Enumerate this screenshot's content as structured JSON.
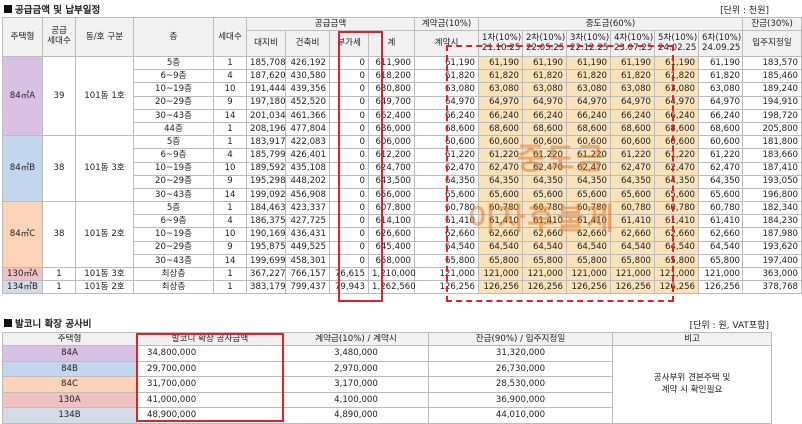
{
  "section1": {
    "title": "공급금액 및 납부일정",
    "unit": "[단위 : 천원]"
  },
  "section2": {
    "title": "발코니 확장 공사비",
    "unit": "[단위 : 원, VAT포함]"
  },
  "watermark": {
    "line1": "중도금",
    "line2": "이자후불제"
  },
  "headers": {
    "type": "주택형",
    "households": "공급\n세대수",
    "dong": "동/호 구분",
    "floor": "층",
    "units": "세대수",
    "supply": "공급금액",
    "land": "대지비",
    "build": "건축비",
    "vat": "부가세",
    "total": "계",
    "contract": "계약금(10%)",
    "contract_sub": "계약시",
    "mid": "중도금(60%)",
    "balance": "잔금(30%)",
    "balance_sub": "입주지정일",
    "installments": [
      {
        "label": "1차(10%)",
        "date": "21.10.25"
      },
      {
        "label": "2차(10%)",
        "date": "22.05.25"
      },
      {
        "label": "3차(10%)",
        "date": "22.12.25"
      },
      {
        "label": "4차(10%)",
        "date": "23.07.25"
      },
      {
        "label": "5차(10%)",
        "date": "24.02.25"
      },
      {
        "label": "6차(10%)",
        "date": "24.09.25"
      }
    ]
  },
  "groups": [
    {
      "type": "84㎡A",
      "households": "39",
      "dong": "101동 1호",
      "cls": "t84A",
      "rows": [
        {
          "floor": "5층",
          "units": "1",
          "land": "185,708",
          "build": "426,192",
          "vat": "0",
          "total": "611,900",
          "contract": "61,190",
          "mid": "61,190",
          "bal": "183,570"
        },
        {
          "floor": "6~9층",
          "units": "4",
          "land": "187,620",
          "build": "430,580",
          "vat": "0",
          "total": "618,200",
          "contract": "61,820",
          "mid": "61,820",
          "bal": "185,460"
        },
        {
          "floor": "10~19층",
          "units": "10",
          "land": "191,444",
          "build": "439,356",
          "vat": "0",
          "total": "630,800",
          "contract": "63,080",
          "mid": "63,080",
          "bal": "189,240"
        },
        {
          "floor": "20~29층",
          "units": "9",
          "land": "197,180",
          "build": "452,520",
          "vat": "0",
          "total": "649,700",
          "contract": "64,970",
          "mid": "64,970",
          "bal": "194,910"
        },
        {
          "floor": "30~43층",
          "units": "14",
          "land": "201,034",
          "build": "461,366",
          "vat": "0",
          "total": "662,400",
          "contract": "66,240",
          "mid": "66,240",
          "bal": "198,720"
        },
        {
          "floor": "44층",
          "units": "1",
          "land": "208,196",
          "build": "477,804",
          "vat": "0",
          "total": "686,000",
          "contract": "68,600",
          "mid": "68,600",
          "bal": "205,800"
        }
      ]
    },
    {
      "type": "84㎡B",
      "households": "38",
      "dong": "101동 3호",
      "cls": "t84B",
      "rows": [
        {
          "floor": "5층",
          "units": "1",
          "land": "183,917",
          "build": "422,083",
          "vat": "0",
          "total": "606,000",
          "contract": "60,600",
          "mid": "60,600",
          "bal": "181,800"
        },
        {
          "floor": "6~9층",
          "units": "4",
          "land": "185,799",
          "build": "426,401",
          "vat": "0",
          "total": "612,200",
          "contract": "61,220",
          "mid": "61,220",
          "bal": "183,660"
        },
        {
          "floor": "10~19층",
          "units": "10",
          "land": "189,592",
          "build": "435,108",
          "vat": "0",
          "total": "624,700",
          "contract": "62,470",
          "mid": "62,470",
          "bal": "187,410"
        },
        {
          "floor": "20~29층",
          "units": "9",
          "land": "195,298",
          "build": "448,202",
          "vat": "0",
          "total": "643,500",
          "contract": "64,350",
          "mid": "64,350",
          "bal": "193,050"
        },
        {
          "floor": "30~43층",
          "units": "14",
          "land": "199,092",
          "build": "456,908",
          "vat": "0",
          "total": "656,000",
          "contract": "65,600",
          "mid": "65,600",
          "bal": "196,800"
        }
      ]
    },
    {
      "type": "84㎡C",
      "households": "38",
      "dong": "101동 2호",
      "cls": "t84C",
      "rows": [
        {
          "floor": "5층",
          "units": "1",
          "land": "184,463",
          "build": "423,337",
          "vat": "0",
          "total": "607,800",
          "contract": "60,780",
          "mid": "60,780",
          "bal": "182,340"
        },
        {
          "floor": "6~9층",
          "units": "4",
          "land": "186,375",
          "build": "427,725",
          "vat": "0",
          "total": "614,100",
          "contract": "61,410",
          "mid": "61,410",
          "bal": "184,230"
        },
        {
          "floor": "10~19층",
          "units": "10",
          "land": "190,169",
          "build": "436,431",
          "vat": "0",
          "total": "626,600",
          "contract": "62,660",
          "mid": "62,660",
          "bal": "187,980"
        },
        {
          "floor": "20~29층",
          "units": "9",
          "land": "195,875",
          "build": "449,525",
          "vat": "0",
          "total": "645,400",
          "contract": "64,540",
          "mid": "64,540",
          "bal": "193,620"
        },
        {
          "floor": "30~43층",
          "units": "14",
          "land": "199,699",
          "build": "458,301",
          "vat": "0",
          "total": "658,000",
          "contract": "65,800",
          "mid": "65,800",
          "bal": "197,400"
        }
      ]
    },
    {
      "type": "130㎡A",
      "households": "1",
      "dong": "101동 3호",
      "cls": "t130",
      "rows": [
        {
          "floor": "최상층",
          "units": "1",
          "land": "367,227",
          "build": "766,157",
          "vat": "76,615",
          "total": "1,210,000",
          "contract": "121,000",
          "mid": "121,000",
          "bal": "363,000"
        }
      ]
    },
    {
      "type": "134㎡B",
      "households": "1",
      "dong": "101동 2호",
      "cls": "t134",
      "rows": [
        {
          "floor": "최상층",
          "units": "1",
          "land": "383,179",
          "build": "799,437",
          "vat": "79,943",
          "total": "1,262,560",
          "contract": "126,256",
          "mid": "126,256",
          "bal": "378,768"
        }
      ]
    }
  ],
  "balcony": {
    "headers": {
      "type": "주택형",
      "cost": "발코니 확장 공사금액",
      "contract": "계약금(10%) / 계약시",
      "balance": "잔금(90%) / 입주지정일",
      "note": "비고"
    },
    "note": "공사부위 견본주택 및\n계약 시 확인필요",
    "rows": [
      {
        "type": "84A",
        "cost": "34,800,000",
        "contract": "3,480,000",
        "balance": "31,320,000",
        "cls": "t84A"
      },
      {
        "type": "84B",
        "cost": "29,700,000",
        "contract": "2,970,000",
        "balance": "26,730,000",
        "cls": "t84B"
      },
      {
        "type": "84C",
        "cost": "31,700,000",
        "contract": "3,170,000",
        "balance": "28,530,000",
        "cls": "t84C"
      },
      {
        "type": "130A",
        "cost": "41,000,000",
        "contract": "4,100,000",
        "balance": "36,900,000",
        "cls": "t130"
      },
      {
        "type": "134B",
        "cost": "48,900,000",
        "contract": "4,890,000",
        "balance": "44,010,000",
        "cls": "t134"
      }
    ]
  }
}
